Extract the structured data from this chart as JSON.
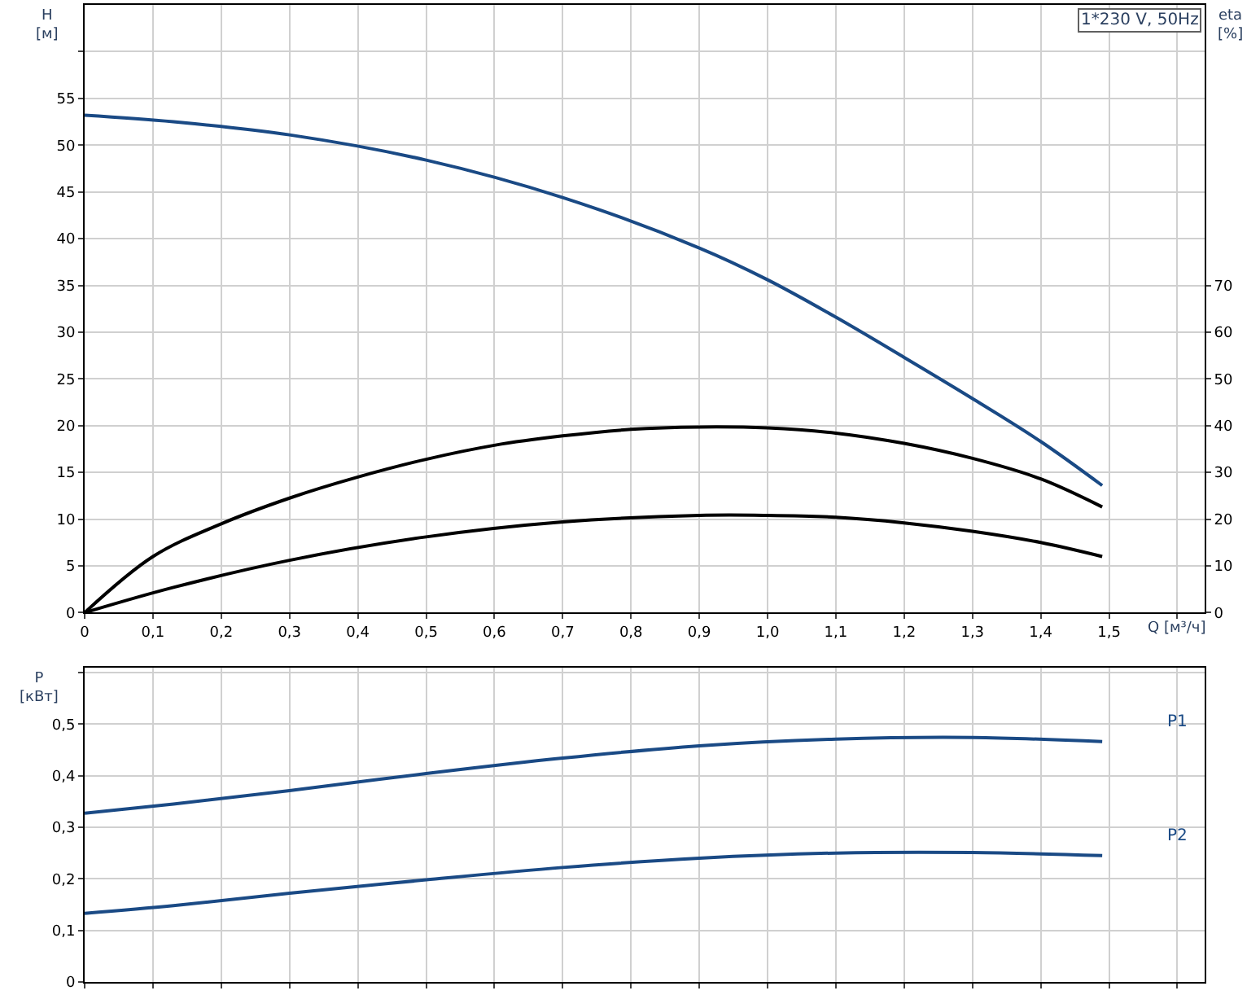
{
  "chart_data": [
    {
      "type": "line",
      "title": "1*230 V, 50Hz",
      "xlabel": "Q [м³/ч]",
      "ylabel": "H [м]",
      "y2label": "eta [%]",
      "grid": true,
      "marker": "none",
      "line_style": "solid",
      "xlim": [
        0,
        1.64
      ],
      "xticks": [
        0,
        {
          "value": 0.1,
          "label": "0,1"
        },
        {
          "value": 0.2,
          "label": "0,2"
        },
        {
          "value": 0.3,
          "label": "0,3"
        },
        {
          "value": 0.4,
          "label": "0,4"
        },
        {
          "value": 0.5,
          "label": "0,5"
        },
        {
          "value": 0.6,
          "label": "0,6"
        },
        {
          "value": 0.7,
          "label": "0,7"
        },
        {
          "value": 0.8,
          "label": "0,8"
        },
        {
          "value": 0.9,
          "label": "0,9"
        },
        {
          "value": 1.0,
          "label": "1,0"
        },
        {
          "value": 1.1,
          "label": "1,1"
        },
        {
          "value": 1.2,
          "label": "1,2"
        },
        {
          "value": 1.3,
          "label": "1,3"
        },
        {
          "value": 1.4,
          "label": "1,4"
        },
        {
          "value": 1.5,
          "label": "1,5"
        },
        {
          "value": 1.6,
          "label": null
        }
      ],
      "ylim": [
        0,
        65
      ],
      "yticks": [
        0,
        5,
        10,
        15,
        20,
        25,
        30,
        35,
        40,
        45,
        50,
        55,
        {
          "value": 60,
          "label": null
        }
      ],
      "y2lim": [
        0,
        130
      ],
      "y2ticks": [
        0,
        10,
        20,
        30,
        40,
        50,
        60,
        70
      ],
      "series": [
        {
          "color": "#1a4a85",
          "x": [
            0,
            0.13,
            0.3,
            0.5,
            0.7,
            0.9,
            1.0,
            1.1,
            1.2,
            1.3,
            1.4,
            1.49
          ],
          "values": [
            53.2,
            52.5,
            51.1,
            48.4,
            44.4,
            39,
            35.6,
            31.6,
            27.3,
            22.9,
            18.3,
            13.6
          ]
        },
        {
          "color": "#000000",
          "axis": "y2",
          "x": [
            0,
            0.1,
            0.2,
            0.3,
            0.4,
            0.5,
            0.6,
            0.7,
            0.8,
            0.9,
            1.0,
            1.1,
            1.2,
            1.3,
            1.4,
            1.49
          ],
          "values": [
            0,
            12,
            19,
            24.5,
            29,
            32.8,
            35.8,
            37.8,
            39.2,
            39.7,
            39.5,
            38.4,
            36.2,
            33,
            28.6,
            22.6
          ]
        },
        {
          "color": "#000000",
          "axis": "y2",
          "x": [
            0,
            0.13,
            0.3,
            0.5,
            0.7,
            0.9,
            1.0,
            1.1,
            1.2,
            1.3,
            1.4,
            1.49
          ],
          "values": [
            0,
            5.4,
            11.2,
            16.2,
            19.4,
            20.8,
            20.8,
            20.4,
            19.2,
            17.4,
            15,
            12
          ]
        }
      ]
    },
    {
      "type": "line",
      "ylabel": "P [кВт]",
      "grid": true,
      "marker": "none",
      "line_style": "solid",
      "tick_labels": "y",
      "xlim": [
        0,
        1.64
      ],
      "xticks": [
        0,
        0.1,
        0.2,
        0.3,
        0.4,
        0.5,
        0.6,
        0.7,
        0.8,
        0.9,
        1.0,
        1.1,
        1.2,
        1.3,
        1.4,
        1.5,
        1.6
      ],
      "ylim": [
        0,
        0.61
      ],
      "yticks": [
        0,
        {
          "value": 0.1,
          "label": "0,1"
        },
        {
          "value": 0.2,
          "label": "0,2"
        },
        {
          "value": 0.3,
          "label": "0,3"
        },
        {
          "value": 0.4,
          "label": "0,4"
        },
        {
          "value": 0.5,
          "label": "0,5"
        },
        {
          "value": 0.6,
          "label": null
        }
      ],
      "series": [
        {
          "name": "P1",
          "color": "#1a4a85",
          "x": [
            0,
            0.13,
            0.3,
            0.5,
            0.7,
            0.9,
            1.1,
            1.3,
            1.49
          ],
          "values": [
            0.327,
            0.345,
            0.371,
            0.404,
            0.434,
            0.458,
            0.471,
            0.474,
            0.466
          ]
        },
        {
          "name": "P2",
          "color": "#1a4a85",
          "x": [
            0,
            0.13,
            0.3,
            0.5,
            0.7,
            0.9,
            1.1,
            1.3,
            1.49
          ],
          "values": [
            0.133,
            0.148,
            0.172,
            0.198,
            0.222,
            0.24,
            0.25,
            0.251,
            0.245
          ]
        }
      ]
    }
  ]
}
